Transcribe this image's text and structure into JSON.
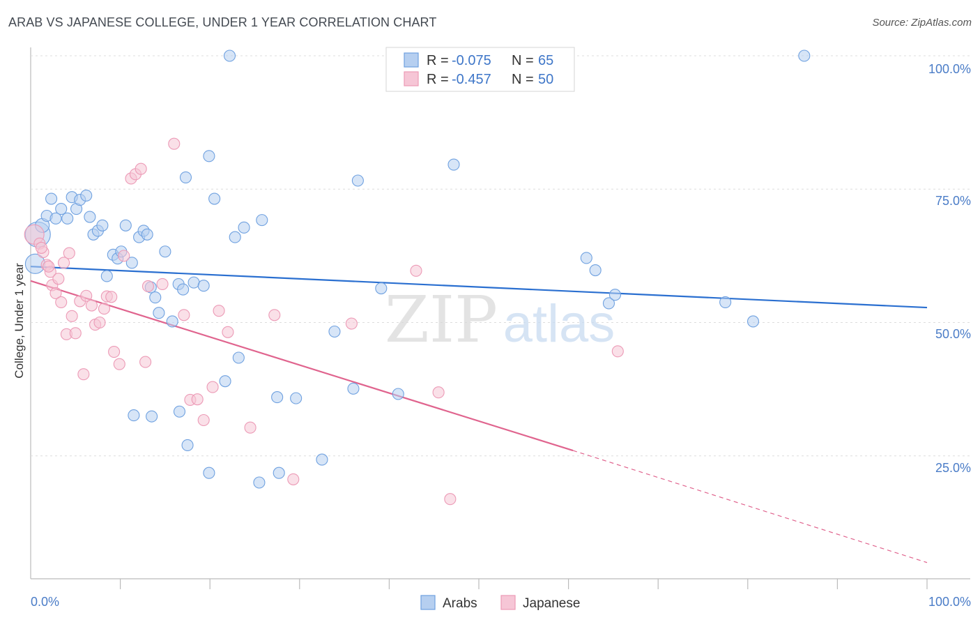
{
  "header": {
    "title": "ARAB VS JAPANESE COLLEGE, UNDER 1 YEAR CORRELATION CHART",
    "source": "Source: ZipAtlas.com"
  },
  "colors": {
    "arabs": "#6fa1e0",
    "arabs_fill": "#b6cff0",
    "arabs_line": "#2a6fd0",
    "japanese": "#ec9ab6",
    "japanese_fill": "#f6c6d6",
    "japanese_line": "#e0648e",
    "tick": "#4a7cc7",
    "grid": "#dddddd"
  },
  "legend_top": {
    "arabs": {
      "r_label": "R = ",
      "r_value": "-0.075",
      "n_label": "N = ",
      "n_value": "65"
    },
    "japanese": {
      "r_label": "R = ",
      "r_value": "-0.457",
      "n_label": "N = ",
      "n_value": "50"
    }
  },
  "legend_bottom": {
    "arabs": "Arabs",
    "japanese": "Japanese"
  },
  "watermark": {
    "zip": "ZIP",
    "atlas": "atlas"
  },
  "chart_data": {
    "type": "scatter",
    "title": "ARAB VS JAPANESE COLLEGE, UNDER 1 YEAR CORRELATION CHART",
    "xlabel": "",
    "ylabel": "College, Under 1 year",
    "xlim": [
      0,
      100
    ],
    "ylim": [
      0,
      103
    ],
    "x_tick_labels": [
      "0.0%",
      "100.0%"
    ],
    "y_ticks": [
      25,
      50,
      75,
      100
    ],
    "y_tick_labels": [
      "25.0%",
      "50.0%",
      "75.0%",
      "100.0%"
    ],
    "grid": true,
    "series": [
      {
        "name": "Arabs",
        "r": -0.075,
        "n": 65,
        "trend": {
          "x": [
            0,
            100
          ],
          "y": [
            60.5,
            52.8
          ]
        },
        "points": [
          [
            0.5,
            61,
            14
          ],
          [
            0.8,
            66.5,
            18
          ],
          [
            1.3,
            68.2,
            10
          ],
          [
            1.8,
            70,
            8
          ],
          [
            2.3,
            73.2,
            8
          ],
          [
            2.8,
            69.5,
            8
          ],
          [
            3.4,
            71.3,
            8
          ],
          [
            4.1,
            69.5,
            8
          ],
          [
            4.6,
            73.5,
            8
          ],
          [
            5.1,
            71.3,
            8
          ],
          [
            5.5,
            73,
            8
          ],
          [
            6.2,
            73.8,
            8
          ],
          [
            6.6,
            69.8,
            8
          ],
          [
            7.0,
            66.5,
            8
          ],
          [
            7.5,
            67.2,
            8
          ],
          [
            8.0,
            68.2,
            8
          ],
          [
            8.5,
            58.7,
            8
          ],
          [
            9.2,
            62.7,
            8
          ],
          [
            9.7,
            62,
            8
          ],
          [
            10.1,
            63.3,
            8
          ],
          [
            10.6,
            68.2,
            8
          ],
          [
            11.3,
            61.2,
            8
          ],
          [
            12.1,
            66,
            8
          ],
          [
            12.6,
            67.2,
            8
          ],
          [
            13.0,
            66.5,
            8
          ],
          [
            13.4,
            56.6,
            8
          ],
          [
            13.9,
            54.7,
            8
          ],
          [
            14.3,
            51.8,
            8
          ],
          [
            15.0,
            63.3,
            8
          ],
          [
            15.8,
            50.2,
            8
          ],
          [
            16.5,
            57.2,
            8
          ],
          [
            17.0,
            56.2,
            8
          ],
          [
            17.3,
            77.2,
            8
          ],
          [
            18.2,
            57.5,
            8
          ],
          [
            19.3,
            56.9,
            8
          ],
          [
            19.9,
            81.2,
            8
          ],
          [
            20.5,
            73.2,
            8
          ],
          [
            21.7,
            39,
            8
          ],
          [
            22.8,
            66,
            8
          ],
          [
            23.2,
            43.4,
            8
          ],
          [
            23.8,
            67.8,
            8
          ],
          [
            25.8,
            69.2,
            8
          ],
          [
            27.5,
            36,
            8
          ],
          [
            29.6,
            35.8,
            8
          ],
          [
            33.9,
            48.3,
            8
          ],
          [
            36.0,
            37.6,
            8
          ],
          [
            36.5,
            76.6,
            8
          ],
          [
            39.1,
            56.4,
            8
          ],
          [
            41.0,
            36.6,
            8
          ],
          [
            47.2,
            79.6,
            8
          ],
          [
            62.0,
            62.1,
            8
          ],
          [
            63.0,
            59.8,
            8
          ],
          [
            64.5,
            53.6,
            8
          ],
          [
            65.2,
            55.2,
            8
          ],
          [
            77.5,
            53.8,
            8
          ],
          [
            80.6,
            50.2,
            8
          ],
          [
            17.5,
            27,
            8
          ],
          [
            16.6,
            33.3,
            8
          ],
          [
            13.5,
            32.4,
            8
          ],
          [
            11.5,
            32.6,
            8
          ],
          [
            19.9,
            21.8,
            8
          ],
          [
            22.2,
            100,
            8
          ],
          [
            25.5,
            20,
            8
          ],
          [
            27.7,
            21.8,
            8
          ],
          [
            32.5,
            24.3,
            8
          ],
          [
            86.3,
            100,
            8
          ]
        ]
      },
      {
        "name": "Japanese",
        "r": -0.457,
        "n": 50,
        "trend": {
          "x": [
            0,
            60.5
          ],
          "y": [
            57.8,
            26
          ],
          "dashed_x": [
            60.5,
            100
          ],
          "dashed_y": [
            26,
            5
          ]
        },
        "points": [
          [
            0.4,
            66.5,
            14
          ],
          [
            1.0,
            64.8,
            8
          ],
          [
            1.4,
            63.2,
            8
          ],
          [
            1.8,
            60.8,
            8
          ],
          [
            2.2,
            59.5,
            8
          ],
          [
            2.4,
            57,
            8
          ],
          [
            2.8,
            55.5,
            8
          ],
          [
            3.1,
            58.2,
            8
          ],
          [
            3.4,
            53.8,
            8
          ],
          [
            3.7,
            61.2,
            8
          ],
          [
            4.0,
            47.8,
            8
          ],
          [
            4.3,
            63,
            8
          ],
          [
            4.6,
            51.2,
            8
          ],
          [
            5.0,
            48,
            8
          ],
          [
            5.5,
            54,
            8
          ],
          [
            5.9,
            40.3,
            8
          ],
          [
            6.2,
            55,
            8
          ],
          [
            6.8,
            53.2,
            8
          ],
          [
            7.2,
            49.6,
            8
          ],
          [
            7.7,
            50,
            8
          ],
          [
            8.2,
            52.6,
            8
          ],
          [
            8.5,
            54.9,
            8
          ],
          [
            9.0,
            54.8,
            8
          ],
          [
            9.3,
            44.5,
            8
          ],
          [
            9.9,
            42.2,
            8
          ],
          [
            10.4,
            62.5,
            8
          ],
          [
            11.2,
            77,
            8
          ],
          [
            11.7,
            77.8,
            8
          ],
          [
            12.3,
            78.8,
            8
          ],
          [
            12.8,
            42.6,
            8
          ],
          [
            13.1,
            56.8,
            8
          ],
          [
            14.7,
            57.2,
            8
          ],
          [
            16.0,
            83.5,
            8
          ],
          [
            17.1,
            51.4,
            8
          ],
          [
            17.8,
            35.5,
            8
          ],
          [
            18.6,
            35.6,
            8
          ],
          [
            19.3,
            31.7,
            8
          ],
          [
            20.3,
            37.9,
            8
          ],
          [
            21.0,
            52.2,
            8
          ],
          [
            22.0,
            48.2,
            8
          ],
          [
            24.5,
            30.3,
            8
          ],
          [
            27.2,
            51.4,
            8
          ],
          [
            29.3,
            20.6,
            8
          ],
          [
            35.8,
            49.8,
            8
          ],
          [
            43.0,
            59.7,
            8
          ],
          [
            45.5,
            36.9,
            8
          ],
          [
            46.8,
            16.9,
            8
          ],
          [
            65.5,
            44.6,
            8
          ],
          [
            1.2,
            64,
            8
          ],
          [
            2.0,
            60.5,
            8
          ]
        ]
      }
    ]
  }
}
